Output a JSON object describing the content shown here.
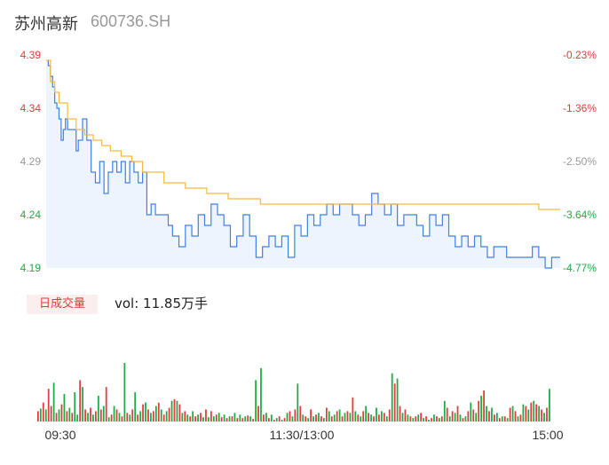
{
  "header": {
    "name": "苏州高新",
    "code": "600736.SH"
  },
  "volume_panel": {
    "badge": "日成交量",
    "vol_label": "vol: 11.85万手"
  },
  "colors": {
    "price_line": "#3f7fe6",
    "avg_line": "#f6b93b",
    "up": "#e33b3b",
    "down": "#1faa44",
    "area_fill": "#eef4fd"
  },
  "chart_data": [
    {
      "type": "line",
      "title": "",
      "x_ticks": [
        "09:30",
        "11:30/13:00",
        "15:00"
      ],
      "y_ticks": [
        "4.39",
        "4.34",
        "4.29",
        "4.24",
        "4.19"
      ],
      "pct_ticks": [
        "-0.23%",
        "-1.36%",
        "-2.50%",
        "-3.64%",
        "-4.77%"
      ],
      "ylim": [
        4.19,
        4.39
      ],
      "grid": false,
      "series": [
        {
          "key": "price",
          "x": [
            0,
            1,
            2,
            3,
            4,
            5,
            6,
            7,
            8,
            9,
            10,
            12,
            14,
            15,
            17,
            19,
            21,
            23,
            25,
            27,
            29,
            31,
            33,
            35,
            37,
            39,
            41,
            43,
            45,
            47,
            49,
            51,
            53,
            55,
            57,
            59,
            62,
            65,
            68,
            71,
            74,
            77,
            80,
            83,
            86,
            89,
            92,
            95,
            98,
            101,
            104,
            107,
            110,
            113,
            116,
            119,
            122,
            125,
            128,
            131,
            134,
            137,
            140,
            143,
            146,
            149,
            152,
            155,
            158,
            161,
            164,
            167,
            170,
            173,
            176,
            179,
            182,
            185,
            188,
            191,
            194,
            197,
            200,
            203,
            206,
            209,
            212,
            215,
            218,
            221,
            224,
            227,
            230,
            233,
            236,
            239,
            240
          ],
          "values": [
            4.385,
            4.38,
            4.37,
            4.36,
            4.345,
            4.34,
            4.33,
            4.31,
            4.32,
            4.33,
            4.32,
            4.32,
            4.3,
            4.31,
            4.33,
            4.31,
            4.28,
            4.27,
            4.29,
            4.26,
            4.28,
            4.29,
            4.28,
            4.29,
            4.27,
            4.29,
            4.28,
            4.27,
            4.28,
            4.24,
            4.25,
            4.24,
            4.24,
            4.24,
            4.23,
            4.22,
            4.21,
            4.23,
            4.22,
            4.24,
            4.23,
            4.25,
            4.24,
            4.23,
            4.21,
            4.22,
            4.24,
            4.22,
            4.2,
            4.21,
            4.22,
            4.21,
            4.22,
            4.2,
            4.23,
            4.22,
            4.24,
            4.23,
            4.24,
            4.25,
            4.24,
            4.25,
            4.25,
            4.24,
            4.23,
            4.24,
            4.26,
            4.25,
            4.24,
            4.25,
            4.23,
            4.24,
            4.24,
            4.23,
            4.22,
            4.24,
            4.23,
            4.24,
            4.22,
            4.21,
            4.22,
            4.21,
            4.22,
            4.21,
            4.2,
            4.21,
            4.21,
            4.2,
            4.2,
            4.2,
            4.2,
            4.21,
            4.2,
            4.19,
            4.2,
            4.2,
            4.2
          ]
        },
        {
          "key": "average",
          "x": [
            0,
            2,
            4,
            6,
            10,
            14,
            18,
            22,
            26,
            30,
            35,
            40,
            45,
            55,
            65,
            75,
            85,
            95,
            100,
            110,
            120,
            130,
            140,
            150,
            160,
            170,
            180,
            190,
            200,
            210,
            220,
            230,
            240
          ],
          "values": [
            4.385,
            4.365,
            4.355,
            4.345,
            4.33,
            4.32,
            4.315,
            4.31,
            4.305,
            4.3,
            4.295,
            4.29,
            4.28,
            4.27,
            4.265,
            4.26,
            4.255,
            4.255,
            4.25,
            4.25,
            4.25,
            4.25,
            4.25,
            4.25,
            4.25,
            4.25,
            4.25,
            4.25,
            4.25,
            4.25,
            4.25,
            4.245,
            4.245
          ]
        }
      ]
    },
    {
      "type": "bar",
      "title": "",
      "note": "volume bars, relative heights",
      "ylim": [
        0,
        100
      ],
      "values": [
        12,
        15,
        22,
        14,
        38,
        18,
        45,
        10,
        14,
        20,
        32,
        12,
        16,
        10,
        34,
        8,
        48,
        40,
        14,
        10,
        16,
        8,
        12,
        30,
        14,
        18,
        40,
        5,
        8,
        18,
        14,
        10,
        6,
        68,
        10,
        8,
        14,
        34,
        8,
        12,
        20,
        22,
        14,
        10,
        12,
        18,
        22,
        14,
        8,
        12,
        16,
        24,
        26,
        24,
        20,
        10,
        12,
        8,
        6,
        12,
        6,
        8,
        10,
        5,
        14,
        5,
        12,
        6,
        8,
        10,
        5,
        8,
        4,
        6,
        6,
        10,
        4,
        8,
        4,
        6,
        7,
        6,
        3,
        48,
        18,
        62,
        8,
        10,
        4,
        8,
        2,
        4,
        6,
        2,
        4,
        10,
        12,
        6,
        14,
        44,
        18,
        8,
        6,
        4,
        14,
        6,
        8,
        10,
        6,
        4,
        16,
        12,
        6,
        8,
        12,
        14,
        6,
        10,
        12,
        10,
        28,
        12,
        8,
        6,
        12,
        18,
        10,
        8,
        6,
        16,
        8,
        12,
        10,
        6,
        14,
        56,
        44,
        50,
        18,
        10,
        14,
        8,
        6,
        4,
        6,
        8,
        10,
        4,
        6,
        2,
        4,
        8,
        6,
        4,
        6,
        24,
        16,
        6,
        12,
        10,
        18,
        8,
        4,
        6,
        12,
        22,
        14,
        10,
        24,
        30,
        36,
        18,
        12,
        16,
        8,
        10,
        4,
        6,
        6,
        4,
        16,
        18,
        12,
        6,
        8,
        20,
        18,
        14,
        22,
        24,
        20,
        18,
        14,
        10,
        16,
        38
      ],
      "up": [
        true,
        false,
        true,
        false,
        true,
        true,
        false,
        true,
        false,
        true,
        false,
        true,
        false,
        true,
        false,
        false,
        true,
        false,
        true,
        false,
        true,
        false,
        true,
        false,
        true,
        false,
        true,
        false,
        true,
        false,
        true,
        false,
        true,
        false,
        true,
        false,
        true,
        false,
        true,
        false,
        true,
        false,
        true,
        false,
        true,
        false,
        true,
        false,
        true,
        false,
        true,
        false,
        true,
        false,
        true,
        false,
        true,
        false,
        true,
        false,
        true,
        false,
        true,
        false,
        true,
        false,
        true,
        false,
        true,
        false,
        true,
        false,
        true,
        false,
        true,
        false,
        true,
        false,
        true,
        false,
        true,
        false,
        true,
        false,
        true,
        false,
        true,
        false,
        true,
        false,
        true,
        false,
        true,
        false,
        true,
        false,
        true,
        false,
        true,
        false,
        true,
        false,
        true,
        false,
        true,
        false,
        true,
        false,
        true,
        false,
        true,
        false,
        true,
        false,
        true,
        false,
        true,
        false,
        true,
        false,
        true,
        false,
        true,
        false,
        true,
        false,
        true,
        false,
        true,
        false,
        true,
        false,
        true,
        false,
        true,
        false,
        true,
        false,
        true,
        false,
        true,
        false,
        true,
        false,
        true,
        false,
        true,
        false,
        true,
        false,
        true,
        false,
        true,
        false,
        true,
        false,
        true,
        false,
        true,
        false,
        true,
        false,
        true,
        false,
        true,
        false,
        true,
        false,
        true,
        false,
        true,
        false,
        true,
        false,
        true,
        false,
        true,
        false,
        true,
        false,
        true,
        false,
        true,
        false,
        true,
        false,
        true,
        false,
        true,
        false,
        true,
        false,
        true,
        false,
        true,
        false,
        true,
        false
      ]
    }
  ]
}
